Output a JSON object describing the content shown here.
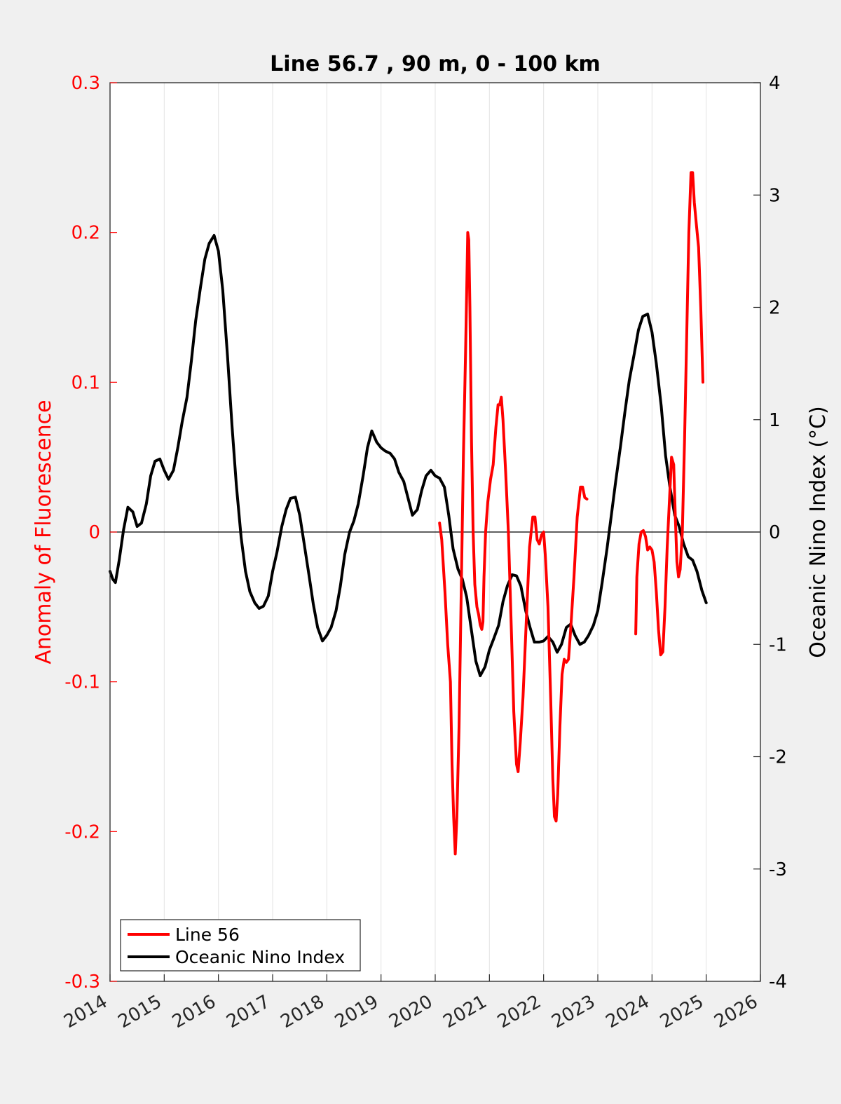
{
  "chart_data": {
    "type": "line",
    "title": "Line 56.7 , 90 m, 0 - 100 km",
    "ylabel_left": "Anomaly of Fluorescence",
    "ylabel_right": "Oceanic Nino Index (°C)",
    "xlim": [
      2014,
      2026
    ],
    "ylim_left": [
      -0.3,
      0.3
    ],
    "ylim_right": [
      -4,
      4
    ],
    "x_ticks": [
      "2014",
      "2015",
      "2016",
      "2017",
      "2018",
      "2019",
      "2020",
      "2021",
      "2022",
      "2023",
      "2024",
      "2025",
      "2026"
    ],
    "y_ticks_left": [
      "-0.3",
      "-0.2",
      "-0.1",
      "0",
      "0.1",
      "0.2",
      "0.3"
    ],
    "y_ticks_right": [
      "-4",
      "-3",
      "-2",
      "-1",
      "0",
      "1",
      "2",
      "3",
      "4"
    ],
    "grid": "vertical",
    "legend_position": "bottom-left",
    "colors": {
      "line56": "#ff0000",
      "oni": "#000000",
      "left_axis": "#ff0000",
      "right_axis": "#000000"
    },
    "series": [
      {
        "name": "Line 56",
        "axis": "left",
        "segments": [
          [
            [
              2020.08,
              0.006
            ],
            [
              2020.12,
              -0.005
            ],
            [
              2020.18,
              -0.04
            ],
            [
              2020.23,
              -0.075
            ],
            [
              2020.28,
              -0.1
            ],
            [
              2020.31,
              -0.155
            ],
            [
              2020.34,
              -0.19
            ],
            [
              2020.37,
              -0.215
            ],
            [
              2020.4,
              -0.19
            ],
            [
              2020.44,
              -0.13
            ],
            [
              2020.48,
              -0.04
            ],
            [
              2020.52,
              0.05
            ],
            [
              2020.56,
              0.12
            ],
            [
              2020.58,
              0.16
            ],
            [
              2020.6,
              0.2
            ],
            [
              2020.62,
              0.195
            ],
            [
              2020.64,
              0.15
            ],
            [
              2020.67,
              0.06
            ],
            [
              2020.7,
              0.0
            ],
            [
              2020.73,
              -0.035
            ],
            [
              2020.77,
              -0.05
            ],
            [
              2020.8,
              -0.055
            ],
            [
              2020.83,
              -0.062
            ],
            [
              2020.86,
              -0.065
            ],
            [
              2020.88,
              -0.06
            ],
            [
              2020.9,
              -0.03
            ],
            [
              2020.93,
              0.0
            ],
            [
              2020.97,
              0.02
            ],
            [
              2021.02,
              0.035
            ],
            [
              2021.07,
              0.045
            ],
            [
              2021.12,
              0.07
            ],
            [
              2021.16,
              0.085
            ],
            [
              2021.19,
              0.085
            ],
            [
              2021.22,
              0.09
            ],
            [
              2021.25,
              0.075
            ],
            [
              2021.3,
              0.04
            ],
            [
              2021.35,
              0.0
            ],
            [
              2021.4,
              -0.06
            ],
            [
              2021.45,
              -0.12
            ],
            [
              2021.5,
              -0.155
            ],
            [
              2021.53,
              -0.16
            ],
            [
              2021.57,
              -0.14
            ],
            [
              2021.62,
              -0.11
            ],
            [
              2021.68,
              -0.06
            ],
            [
              2021.74,
              -0.01
            ],
            [
              2021.8,
              0.01
            ],
            [
              2021.84,
              0.01
            ],
            [
              2021.88,
              -0.005
            ],
            [
              2021.92,
              -0.008
            ],
            [
              2021.96,
              -0.002
            ],
            [
              2022.0,
              0.0
            ],
            [
              2022.03,
              -0.015
            ],
            [
              2022.08,
              -0.05
            ],
            [
              2022.13,
              -0.11
            ],
            [
              2022.17,
              -0.165
            ],
            [
              2022.2,
              -0.19
            ],
            [
              2022.23,
              -0.193
            ],
            [
              2022.26,
              -0.175
            ],
            [
              2022.3,
              -0.13
            ],
            [
              2022.34,
              -0.095
            ],
            [
              2022.38,
              -0.085
            ],
            [
              2022.42,
              -0.087
            ],
            [
              2022.46,
              -0.085
            ],
            [
              2022.5,
              -0.065
            ],
            [
              2022.56,
              -0.03
            ],
            [
              2022.62,
              0.01
            ],
            [
              2022.68,
              0.03
            ],
            [
              2022.72,
              0.03
            ],
            [
              2022.76,
              0.023
            ],
            [
              2022.8,
              0.022
            ]
          ],
          [
            [
              2023.7,
              -0.068
            ],
            [
              2023.72,
              -0.03
            ],
            [
              2023.76,
              -0.008
            ],
            [
              2023.8,
              0.0
            ],
            [
              2023.84,
              0.001
            ],
            [
              2023.88,
              -0.003
            ],
            [
              2023.92,
              -0.012
            ],
            [
              2023.96,
              -0.01
            ],
            [
              2024.0,
              -0.012
            ],
            [
              2024.04,
              -0.02
            ],
            [
              2024.08,
              -0.04
            ],
            [
              2024.12,
              -0.065
            ],
            [
              2024.16,
              -0.082
            ],
            [
              2024.2,
              -0.08
            ],
            [
              2024.24,
              -0.05
            ],
            [
              2024.28,
              -0.01
            ],
            [
              2024.32,
              0.02
            ],
            [
              2024.36,
              0.05
            ],
            [
              2024.4,
              0.045
            ],
            [
              2024.43,
              0.01
            ],
            [
              2024.46,
              -0.02
            ],
            [
              2024.49,
              -0.03
            ],
            [
              2024.52,
              -0.025
            ],
            [
              2024.56,
              0.0
            ],
            [
              2024.6,
              0.06
            ],
            [
              2024.64,
              0.13
            ],
            [
              2024.68,
              0.2
            ],
            [
              2024.72,
              0.24
            ],
            [
              2024.75,
              0.24
            ],
            [
              2024.78,
              0.22
            ],
            [
              2024.82,
              0.205
            ],
            [
              2024.86,
              0.19
            ],
            [
              2024.9,
              0.15
            ],
            [
              2024.94,
              0.1
            ]
          ]
        ]
      },
      {
        "name": "Oceanic Nino Index",
        "axis": "right",
        "segments": [
          [
            [
              2014.0,
              -0.35
            ],
            [
              2014.05,
              -0.42
            ],
            [
              2014.1,
              -0.45
            ],
            [
              2014.17,
              -0.25
            ],
            [
              2014.25,
              0.02
            ],
            [
              2014.33,
              0.22
            ],
            [
              2014.42,
              0.18
            ],
            [
              2014.5,
              0.05
            ],
            [
              2014.58,
              0.08
            ],
            [
              2014.67,
              0.25
            ],
            [
              2014.75,
              0.5
            ],
            [
              2014.83,
              0.63
            ],
            [
              2014.92,
              0.65
            ],
            [
              2015.0,
              0.55
            ],
            [
              2015.08,
              0.47
            ],
            [
              2015.17,
              0.55
            ],
            [
              2015.25,
              0.75
            ],
            [
              2015.33,
              0.98
            ],
            [
              2015.42,
              1.2
            ],
            [
              2015.5,
              1.52
            ],
            [
              2015.58,
              1.88
            ],
            [
              2015.67,
              2.18
            ],
            [
              2015.75,
              2.43
            ],
            [
              2015.83,
              2.57
            ],
            [
              2015.92,
              2.64
            ],
            [
              2016.0,
              2.5
            ],
            [
              2016.08,
              2.15
            ],
            [
              2016.17,
              1.55
            ],
            [
              2016.25,
              0.95
            ],
            [
              2016.33,
              0.42
            ],
            [
              2016.42,
              -0.05
            ],
            [
              2016.5,
              -0.35
            ],
            [
              2016.58,
              -0.53
            ],
            [
              2016.67,
              -0.63
            ],
            [
              2016.75,
              -0.68
            ],
            [
              2016.83,
              -0.66
            ],
            [
              2016.92,
              -0.57
            ],
            [
              2017.0,
              -0.35
            ],
            [
              2017.08,
              -0.18
            ],
            [
              2017.17,
              0.05
            ],
            [
              2017.25,
              0.2
            ],
            [
              2017.33,
              0.3
            ],
            [
              2017.42,
              0.31
            ],
            [
              2017.5,
              0.15
            ],
            [
              2017.58,
              -0.1
            ],
            [
              2017.67,
              -0.38
            ],
            [
              2017.75,
              -0.64
            ],
            [
              2017.83,
              -0.85
            ],
            [
              2017.92,
              -0.97
            ],
            [
              2018.0,
              -0.92
            ],
            [
              2018.08,
              -0.85
            ],
            [
              2018.17,
              -0.7
            ],
            [
              2018.25,
              -0.48
            ],
            [
              2018.33,
              -0.2
            ],
            [
              2018.42,
              0.0
            ],
            [
              2018.5,
              0.1
            ],
            [
              2018.58,
              0.25
            ],
            [
              2018.67,
              0.5
            ],
            [
              2018.75,
              0.75
            ],
            [
              2018.83,
              0.9
            ],
            [
              2018.92,
              0.8
            ],
            [
              2019.0,
              0.75
            ],
            [
              2019.08,
              0.72
            ],
            [
              2019.17,
              0.7
            ],
            [
              2019.25,
              0.65
            ],
            [
              2019.33,
              0.53
            ],
            [
              2019.42,
              0.45
            ],
            [
              2019.5,
              0.3
            ],
            [
              2019.58,
              0.15
            ],
            [
              2019.67,
              0.2
            ],
            [
              2019.75,
              0.37
            ],
            [
              2019.83,
              0.5
            ],
            [
              2019.92,
              0.55
            ],
            [
              2020.0,
              0.5
            ],
            [
              2020.08,
              0.48
            ],
            [
              2020.17,
              0.4
            ],
            [
              2020.25,
              0.15
            ],
            [
              2020.33,
              -0.15
            ],
            [
              2020.42,
              -0.33
            ],
            [
              2020.5,
              -0.42
            ],
            [
              2020.58,
              -0.58
            ],
            [
              2020.67,
              -0.88
            ],
            [
              2020.75,
              -1.15
            ],
            [
              2020.83,
              -1.28
            ],
            [
              2020.92,
              -1.2
            ],
            [
              2021.0,
              -1.05
            ],
            [
              2021.08,
              -0.95
            ],
            [
              2021.17,
              -0.83
            ],
            [
              2021.25,
              -0.62
            ],
            [
              2021.33,
              -0.48
            ],
            [
              2021.42,
              -0.38
            ],
            [
              2021.5,
              -0.39
            ],
            [
              2021.58,
              -0.48
            ],
            [
              2021.67,
              -0.7
            ],
            [
              2021.75,
              -0.85
            ],
            [
              2021.83,
              -0.98
            ],
            [
              2021.92,
              -0.98
            ],
            [
              2022.0,
              -0.97
            ],
            [
              2022.08,
              -0.93
            ],
            [
              2022.17,
              -0.98
            ],
            [
              2022.25,
              -1.07
            ],
            [
              2022.33,
              -1.0
            ],
            [
              2022.42,
              -0.85
            ],
            [
              2022.5,
              -0.82
            ],
            [
              2022.58,
              -0.92
            ],
            [
              2022.67,
              -1.0
            ],
            [
              2022.75,
              -0.98
            ],
            [
              2022.83,
              -0.92
            ],
            [
              2022.92,
              -0.83
            ],
            [
              2023.0,
              -0.7
            ],
            [
              2023.08,
              -0.45
            ],
            [
              2023.17,
              -0.15
            ],
            [
              2023.25,
              0.15
            ],
            [
              2023.33,
              0.45
            ],
            [
              2023.42,
              0.77
            ],
            [
              2023.5,
              1.07
            ],
            [
              2023.58,
              1.35
            ],
            [
              2023.67,
              1.58
            ],
            [
              2023.75,
              1.8
            ],
            [
              2023.83,
              1.92
            ],
            [
              2023.92,
              1.94
            ],
            [
              2024.0,
              1.78
            ],
            [
              2024.08,
              1.5
            ],
            [
              2024.17,
              1.12
            ],
            [
              2024.25,
              0.68
            ],
            [
              2024.33,
              0.4
            ],
            [
              2024.42,
              0.15
            ],
            [
              2024.5,
              0.05
            ],
            [
              2024.58,
              -0.1
            ],
            [
              2024.67,
              -0.22
            ],
            [
              2024.75,
              -0.25
            ],
            [
              2024.83,
              -0.35
            ],
            [
              2024.92,
              -0.52
            ],
            [
              2025.0,
              -0.63
            ]
          ]
        ]
      }
    ]
  }
}
